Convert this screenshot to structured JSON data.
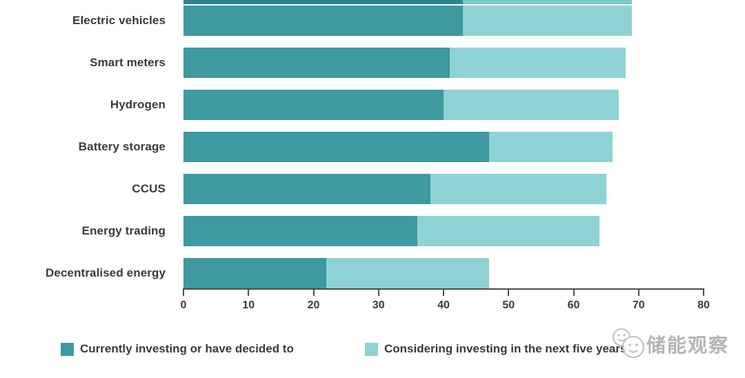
{
  "chart_data": {
    "type": "bar",
    "orientation": "horizontal",
    "stacked": true,
    "title": "",
    "categories": [
      "Electric vehicles",
      "Smart meters",
      "Hydrogen",
      "Battery storage",
      "CCUS",
      "Energy trading",
      "Decentralised energy"
    ],
    "series": [
      {
        "name": "Currently investing or have decided to",
        "color": "#3e99a1",
        "values": [
          43,
          41,
          40,
          47,
          38,
          36,
          22
        ]
      },
      {
        "name": "Considering investing in the next five years",
        "color": "#8fd2d3",
        "values": [
          26,
          27,
          27,
          19,
          27,
          28,
          25
        ]
      }
    ],
    "totals": [
      69,
      68,
      67,
      66,
      65,
      64,
      47
    ],
    "xlim": [
      0,
      80
    ],
    "xticks": [
      0,
      10,
      20,
      30,
      40,
      50,
      60,
      70,
      80
    ],
    "xlabel": "",
    "ylabel": "",
    "grid": false,
    "legend_position": "bottom"
  },
  "legend": {
    "items": [
      {
        "label": "Currently investing or have decided to",
        "color": "#3e99a1"
      },
      {
        "label": "Considering investing in the next five years",
        "color": "#8fd2d3"
      }
    ]
  },
  "watermark": {
    "text": "储能观察",
    "icon": "wechat-bubbles-icon",
    "color": "#b3b1ae"
  }
}
